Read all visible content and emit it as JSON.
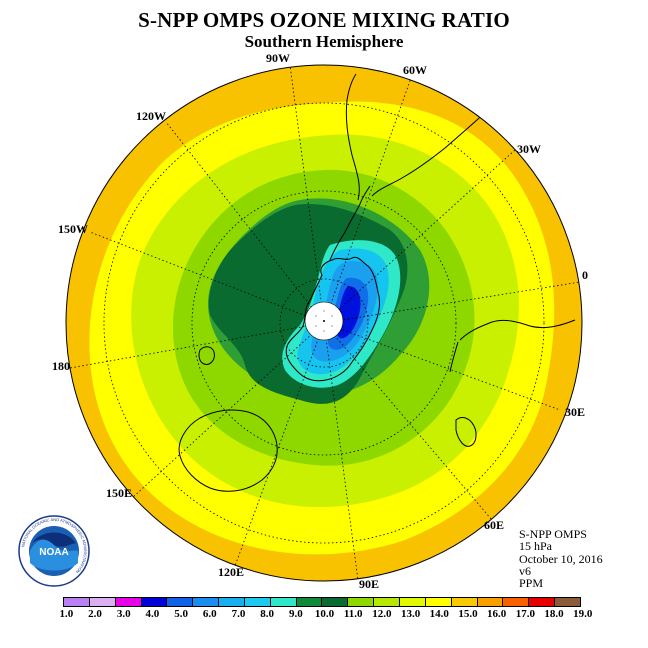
{
  "header": {
    "title": "S-NPP OMPS OZONE MIXING RATIO",
    "subtitle": "Southern Hemisphere"
  },
  "map": {
    "projection": "south polar stereographic",
    "longitude_labels": {
      "lon_90w": "90W",
      "lon_60w": "60W",
      "lon_30w": "30W",
      "lon_0": "0",
      "lon_30e": "30E",
      "lon_60e": "60E",
      "lon_90e": "90E",
      "lon_120e": "120E",
      "lon_150e": "150E",
      "lon_180": "180",
      "lon_150w": "150W",
      "lon_120w": "120W"
    },
    "ozone_bands_ppm": [
      {
        "level": 14.0,
        "color": "#f9c200"
      },
      {
        "level": 13.0,
        "color": "#ffff00"
      },
      {
        "level": 12.0,
        "color": "#c8f000"
      },
      {
        "level": 11.0,
        "color": "#8ed800"
      },
      {
        "level": 10.0,
        "color": "#2f9f35"
      },
      {
        "level": 9.0,
        "color": "#0a6b30"
      },
      {
        "level": 8.0,
        "color": "#2ee8c8"
      },
      {
        "level": 7.0,
        "color": "#16c4f0"
      },
      {
        "level": 6.0,
        "color": "#1aa0ee"
      },
      {
        "level": 5.0,
        "color": "#0f6ee8"
      },
      {
        "level": 4.0,
        "color": "#0010dd"
      }
    ]
  },
  "info": {
    "product": "S-NPP OMPS",
    "level": "15 hPa",
    "date": "October 10, 2016",
    "version": "v6",
    "units": "PPM"
  },
  "colorbar": {
    "colors": [
      "#b880f0",
      "#dcb0f0",
      "#e800e8",
      "#0000d8",
      "#1060e8",
      "#1a8ef0",
      "#16b0f0",
      "#1ccaf0",
      "#2ee8c8",
      "#0e8a3a",
      "#0a6b30",
      "#8ed800",
      "#b8e800",
      "#e0f800",
      "#ffff00",
      "#f8c800",
      "#f8a000",
      "#f86000",
      "#e80000",
      "#8a5a3a"
    ],
    "tick_labels": [
      "1.0",
      "2.0",
      "3.0",
      "4.0",
      "5.0",
      "6.0",
      "7.0",
      "8.0",
      "9.0",
      "10.0",
      "11.0",
      "12.0",
      "13.0",
      "14.0",
      "15.0",
      "16.0",
      "17.0",
      "18.0",
      "19.0"
    ]
  },
  "logo": {
    "text": "NOAA",
    "ring_text": "NATIONAL OCEANIC AND ATMOSPHERIC ADMINISTRATION",
    "ring_text_bottom": "U.S. DEPARTMENT OF COMMERCE"
  }
}
